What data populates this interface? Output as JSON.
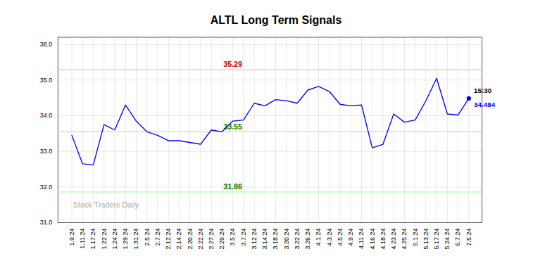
{
  "chart_data": {
    "type": "line",
    "title": "ALTL Long Term Signals",
    "categories": [
      "1.9.24",
      "1.11.24",
      "1.17.24",
      "1.22.24",
      "1.24.24",
      "1.29.24",
      "1.31.24",
      "2.5.24",
      "2.7.24",
      "2.12.24",
      "2.14.24",
      "2.20.24",
      "2.22.24",
      "2.27.24",
      "2.29.24",
      "3.5.24",
      "3.7.24",
      "3.12.24",
      "3.14.24",
      "3.18.24",
      "3.20.24",
      "3.22.24",
      "3.26.24",
      "4.1.24",
      "4.3.24",
      "4.5.24",
      "4.9.24",
      "4.11.24",
      "4.16.24",
      "4.18.24",
      "4.23.24",
      "4.25.24",
      "5.1.24",
      "5.13.24",
      "5.17.24",
      "5.24.24",
      "6.7.24",
      "7.5.24"
    ],
    "values": [
      33.45,
      32.65,
      32.62,
      33.75,
      33.6,
      34.3,
      33.85,
      33.55,
      33.45,
      33.3,
      33.3,
      33.25,
      33.2,
      33.6,
      33.55,
      33.85,
      33.88,
      34.35,
      34.28,
      34.45,
      34.42,
      34.35,
      34.72,
      34.82,
      34.68,
      34.32,
      34.28,
      34.3,
      33.1,
      33.2,
      34.05,
      33.82,
      33.88,
      34.42,
      35.05,
      34.05,
      34.02,
      34.484
    ],
    "color": "blue",
    "hlines": [
      {
        "value": 35.29,
        "color": "#ffbbbb",
        "label_color": "#cc0000"
      },
      {
        "value": 33.55,
        "color": "#aaffaa",
        "label_color": "#007700"
      },
      {
        "value": 31.86,
        "color": "#aaffaa",
        "label_color": "#007700"
      }
    ],
    "annotations": [
      "15:30",
      "34.484"
    ],
    "watermark": "Stock Traders Daily",
    "ylim": [
      31.0,
      36.2
    ],
    "yticks": [
      31,
      32,
      33,
      34,
      35,
      36
    ],
    "grid": true
  }
}
